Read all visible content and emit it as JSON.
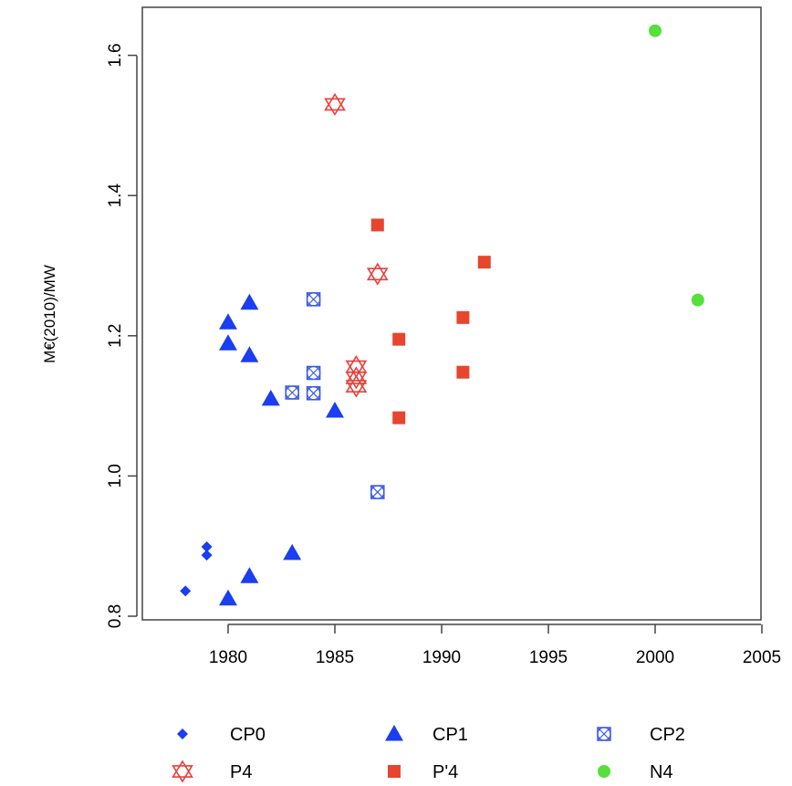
{
  "chart_data": {
    "type": "scatter",
    "title": "",
    "xlabel": "",
    "ylabel": "M€(2010)/MW",
    "xlim": [
      1975,
      2005
    ],
    "ylim": [
      0.8,
      1.64
    ],
    "x_ticks": [
      1980,
      1985,
      1990,
      1995,
      2000,
      2005
    ],
    "y_ticks": [
      0.8,
      1.0,
      1.2,
      1.4,
      1.6
    ],
    "x_tick_labels": [
      "1980",
      "1985",
      "1990",
      "1995",
      "2000",
      "2005"
    ],
    "y_tick_labels": [
      "0.8",
      "1.0",
      "1.2",
      "1.4",
      "1.6"
    ],
    "grid": false,
    "legend_position": "bottom",
    "series": [
      {
        "name": "CP0",
        "color": "#1a3ef0",
        "marker": "diamond",
        "points": [
          [
            1978,
            0.836
          ],
          [
            1979,
            0.899
          ],
          [
            1979,
            0.887
          ]
        ]
      },
      {
        "name": "CP1",
        "color": "#1a3ef0",
        "marker": "triangle",
        "points": [
          [
            1980,
            1.219
          ],
          [
            1980,
            1.189
          ],
          [
            1981,
            1.247
          ],
          [
            1981,
            1.172
          ],
          [
            1982,
            1.11
          ],
          [
            1985,
            1.093
          ],
          [
            1983,
            0.89
          ],
          [
            1981,
            0.857
          ],
          [
            1980,
            0.825
          ]
        ]
      },
      {
        "name": "CP2",
        "color": "#3a58e8",
        "marker": "crossed-square",
        "points": [
          [
            1984,
            1.252
          ],
          [
            1984,
            1.147
          ],
          [
            1984,
            1.118
          ],
          [
            1983,
            1.119
          ],
          [
            1987,
            0.977
          ]
        ]
      },
      {
        "name": "P4",
        "color": "#e8403a",
        "marker": "star-of-david",
        "points": [
          [
            1985,
            1.53
          ],
          [
            1987,
            1.288
          ],
          [
            1986,
            1.156
          ],
          [
            1986,
            1.14
          ],
          [
            1986,
            1.128
          ]
        ]
      },
      {
        "name": "P'4",
        "color": "#e8452e",
        "marker": "square",
        "points": [
          [
            1987,
            1.358
          ],
          [
            1992,
            1.305
          ],
          [
            1991,
            1.226
          ],
          [
            1988,
            1.195
          ],
          [
            1991,
            1.148
          ],
          [
            1988,
            1.083
          ]
        ]
      },
      {
        "name": "N4",
        "color": "#55e03c",
        "marker": "circle",
        "points": [
          [
            2000,
            1.635
          ],
          [
            2002,
            1.251
          ]
        ]
      }
    ]
  }
}
